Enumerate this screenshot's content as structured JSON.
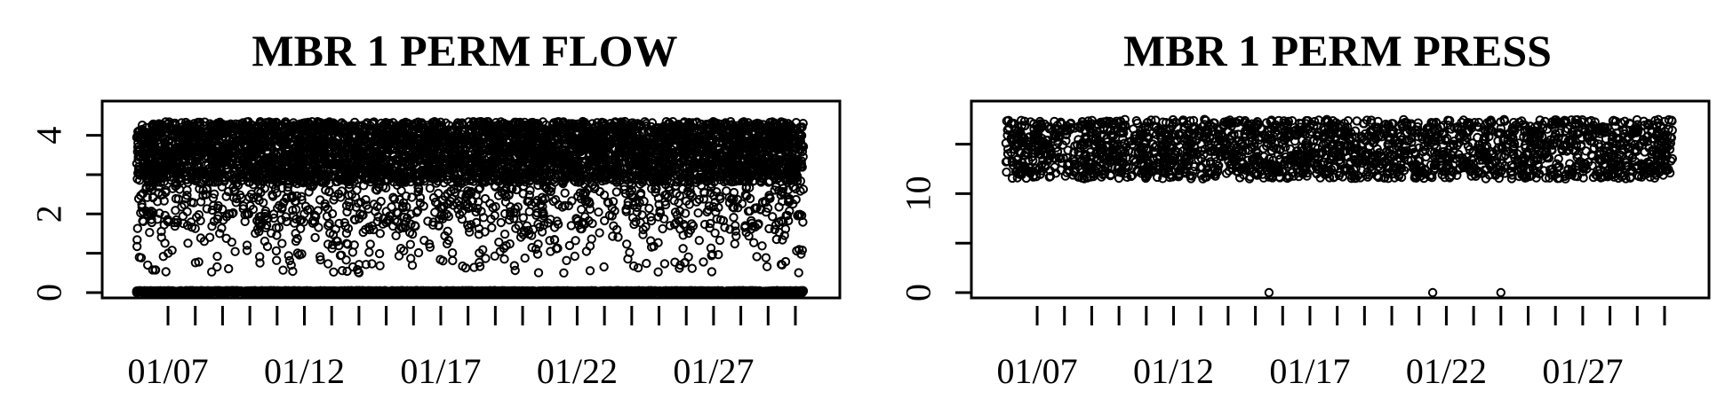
{
  "chart_data": [
    {
      "type": "scatter",
      "title": "MBR 1 PERM FLOW",
      "xlabel": "",
      "ylabel": "",
      "x_range": [
        "01/05 12:00",
        "01/30 18:00"
      ],
      "ylim": [
        0,
        4.6
      ],
      "yticks": [
        0,
        1,
        2,
        3,
        4
      ],
      "ytick_labels": [
        "0",
        "",
        "2",
        "",
        "4"
      ],
      "xtick_labels": [
        "01/07",
        "01/12",
        "01/17",
        "01/22",
        "01/27"
      ],
      "minor_xticks_per_day": 1,
      "grid": false,
      "marker": "open-circle",
      "color": "#000000",
      "series": [
        {
          "description_of_values": "flow readings (points)",
          "values_bands": [
            {
              "y_low": 3.6,
              "y_high": 4.35,
              "density": "dense"
            },
            {
              "y_low": 2.8,
              "y_high": 3.6,
              "density": "dense"
            },
            {
              "y_low": 1.6,
              "y_high": 2.8,
              "density": "medium"
            },
            {
              "y_low": 0.5,
              "y_high": 1.6,
              "density": "sparse"
            },
            {
              "y_low": 0.0,
              "y_high": 0.05,
              "density": "dense"
            }
          ]
        }
      ]
    },
    {
      "type": "scatter",
      "title": "MBR 1 PERM PRESS",
      "xlabel": "",
      "ylabel": "",
      "x_range": [
        "01/05 12:00",
        "01/30 18:00"
      ],
      "ylim": [
        0,
        19
      ],
      "yticks": [
        0,
        5,
        10,
        15
      ],
      "ytick_labels": [
        "0",
        "",
        "10",
        ""
      ],
      "xtick_labels": [
        "01/07",
        "01/12",
        "01/17",
        "01/22",
        "01/27"
      ],
      "minor_xticks_per_day": 1,
      "grid": false,
      "marker": "open-circle",
      "color": "#000000",
      "series": [
        {
          "description_of_values": "pressure readings (points)",
          "values_bands": [
            {
              "y_low": 11.5,
              "y_high": 17.5,
              "density": "dense"
            }
          ],
          "outliers": [
            {
              "x": "01/15 12:00",
              "y": 0
            },
            {
              "x": "01/21 12:00",
              "y": 0
            },
            {
              "x": "01/24 00:00",
              "y": 0
            }
          ]
        }
      ]
    }
  ]
}
